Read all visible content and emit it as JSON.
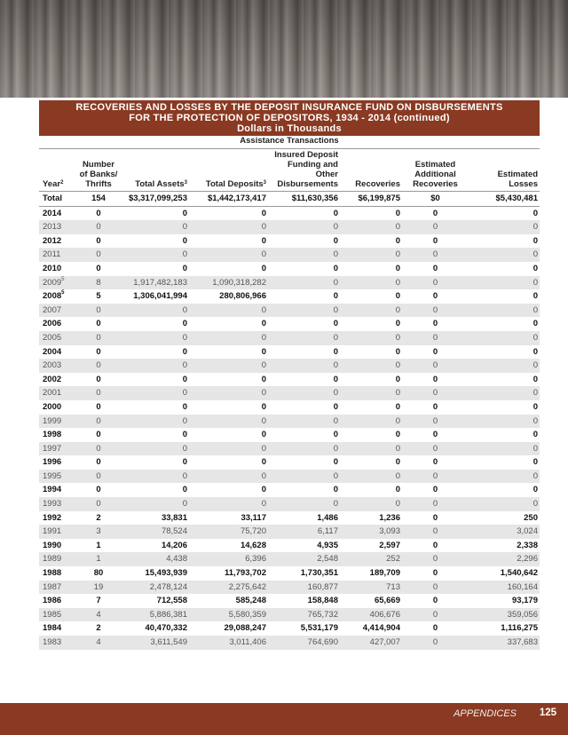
{
  "title": {
    "line1": "RECOVERIES AND LOSSES BY THE DEPOSIT INSURANCE FUND ON DISBURSEMENTS",
    "line2": "FOR THE PROTECTION OF DEPOSITORS, 1934 - 2014 (continued)",
    "line3": "Dollars in Thousands"
  },
  "subtitle": "Assistance Transactions",
  "columns": [
    {
      "label": "Year",
      "sup": "2"
    },
    {
      "label": "Number of Banks/ Thrifts",
      "sup": ""
    },
    {
      "label": "Total Assets",
      "sup": "3"
    },
    {
      "label": "Total Deposits",
      "sup": "3"
    },
    {
      "label": "Insured Deposit Funding and Other Disbursements",
      "sup": ""
    },
    {
      "label": "Recoveries",
      "sup": ""
    },
    {
      "label": "Estimated Additional Recoveries",
      "sup": ""
    },
    {
      "label": "Estimated Losses",
      "sup": ""
    }
  ],
  "total": [
    "Total",
    "154",
    "$3,317,099,253",
    "$1,442,173,417",
    "$11,630,356",
    "$6,199,875",
    "$0",
    "$5,430,481"
  ],
  "rows": [
    {
      "year": "2014",
      "sup": "",
      "v": [
        "0",
        "0",
        "0",
        "0",
        "0",
        "0",
        "0"
      ]
    },
    {
      "year": "2013",
      "sup": "",
      "v": [
        "0",
        "0",
        "0",
        "0",
        "0",
        "0",
        "0"
      ]
    },
    {
      "year": "2012",
      "sup": "",
      "v": [
        "0",
        "0",
        "0",
        "0",
        "0",
        "0",
        "0"
      ]
    },
    {
      "year": "2011",
      "sup": "",
      "v": [
        "0",
        "0",
        "0",
        "0",
        "0",
        "0",
        "0"
      ]
    },
    {
      "year": "2010",
      "sup": "",
      "v": [
        "0",
        "0",
        "0",
        "0",
        "0",
        "0",
        "0"
      ]
    },
    {
      "year": "2009",
      "sup": "5",
      "v": [
        "8",
        "1,917,482,183",
        "1,090,318,282",
        "0",
        "0",
        "0",
        "0"
      ]
    },
    {
      "year": "2008",
      "sup": "5",
      "v": [
        "5",
        "1,306,041,994",
        "280,806,966",
        "0",
        "0",
        "0",
        "0"
      ]
    },
    {
      "year": "2007",
      "sup": "",
      "v": [
        "0",
        "0",
        "0",
        "0",
        "0",
        "0",
        "0"
      ]
    },
    {
      "year": "2006",
      "sup": "",
      "v": [
        "0",
        "0",
        "0",
        "0",
        "0",
        "0",
        "0"
      ]
    },
    {
      "year": "2005",
      "sup": "",
      "v": [
        "0",
        "0",
        "0",
        "0",
        "0",
        "0",
        "0"
      ]
    },
    {
      "year": "2004",
      "sup": "",
      "v": [
        "0",
        "0",
        "0",
        "0",
        "0",
        "0",
        "0"
      ]
    },
    {
      "year": "2003",
      "sup": "",
      "v": [
        "0",
        "0",
        "0",
        "0",
        "0",
        "0",
        "0"
      ]
    },
    {
      "year": "2002",
      "sup": "",
      "v": [
        "0",
        "0",
        "0",
        "0",
        "0",
        "0",
        "0"
      ]
    },
    {
      "year": "2001",
      "sup": "",
      "v": [
        "0",
        "0",
        "0",
        "0",
        "0",
        "0",
        "0"
      ]
    },
    {
      "year": "2000",
      "sup": "",
      "v": [
        "0",
        "0",
        "0",
        "0",
        "0",
        "0",
        "0"
      ]
    },
    {
      "year": "1999",
      "sup": "",
      "v": [
        "0",
        "0",
        "0",
        "0",
        "0",
        "0",
        "0"
      ]
    },
    {
      "year": "1998",
      "sup": "",
      "v": [
        "0",
        "0",
        "0",
        "0",
        "0",
        "0",
        "0"
      ]
    },
    {
      "year": "1997",
      "sup": "",
      "v": [
        "0",
        "0",
        "0",
        "0",
        "0",
        "0",
        "0"
      ]
    },
    {
      "year": "1996",
      "sup": "",
      "v": [
        "0",
        "0",
        "0",
        "0",
        "0",
        "0",
        "0"
      ]
    },
    {
      "year": "1995",
      "sup": "",
      "v": [
        "0",
        "0",
        "0",
        "0",
        "0",
        "0",
        "0"
      ]
    },
    {
      "year": "1994",
      "sup": "",
      "v": [
        "0",
        "0",
        "0",
        "0",
        "0",
        "0",
        "0"
      ]
    },
    {
      "year": "1993",
      "sup": "",
      "v": [
        "0",
        "0",
        "0",
        "0",
        "0",
        "0",
        "0"
      ]
    },
    {
      "year": "1992",
      "sup": "",
      "v": [
        "2",
        "33,831",
        "33,117",
        "1,486",
        "1,236",
        "0",
        "250"
      ]
    },
    {
      "year": "1991",
      "sup": "",
      "v": [
        "3",
        "78,524",
        "75,720",
        "6,117",
        "3,093",
        "0",
        "3,024"
      ]
    },
    {
      "year": "1990",
      "sup": "",
      "v": [
        "1",
        "14,206",
        "14,628",
        "4,935",
        "2,597",
        "0",
        "2,338"
      ]
    },
    {
      "year": "1989",
      "sup": "",
      "v": [
        "1",
        "4,438",
        "6,396",
        "2,548",
        "252",
        "0",
        "2,296"
      ]
    },
    {
      "year": "1988",
      "sup": "",
      "v": [
        "80",
        "15,493,939",
        "11,793,702",
        "1,730,351",
        "189,709",
        "0",
        "1,540,642"
      ]
    },
    {
      "year": "1987",
      "sup": "",
      "v": [
        "19",
        "2,478,124",
        "2,275,642",
        "160,877",
        "713",
        "0",
        "160,164"
      ]
    },
    {
      "year": "1986",
      "sup": "",
      "v": [
        "7",
        "712,558",
        "585,248",
        "158,848",
        "65,669",
        "0",
        "93,179"
      ]
    },
    {
      "year": "1985",
      "sup": "",
      "v": [
        "4",
        "5,886,381",
        "5,580,359",
        "765,732",
        "406,676",
        "0",
        "359,056"
      ]
    },
    {
      "year": "1984",
      "sup": "",
      "v": [
        "2",
        "40,470,332",
        "29,088,247",
        "5,531,179",
        "4,414,904",
        "0",
        "1,116,275"
      ]
    },
    {
      "year": "1983",
      "sup": "",
      "v": [
        "4",
        "3,611,549",
        "3,011,406",
        "764,690",
        "427,007",
        "0",
        "337,683"
      ]
    }
  ],
  "footer": {
    "section": "APPENDICES",
    "page": "125"
  }
}
